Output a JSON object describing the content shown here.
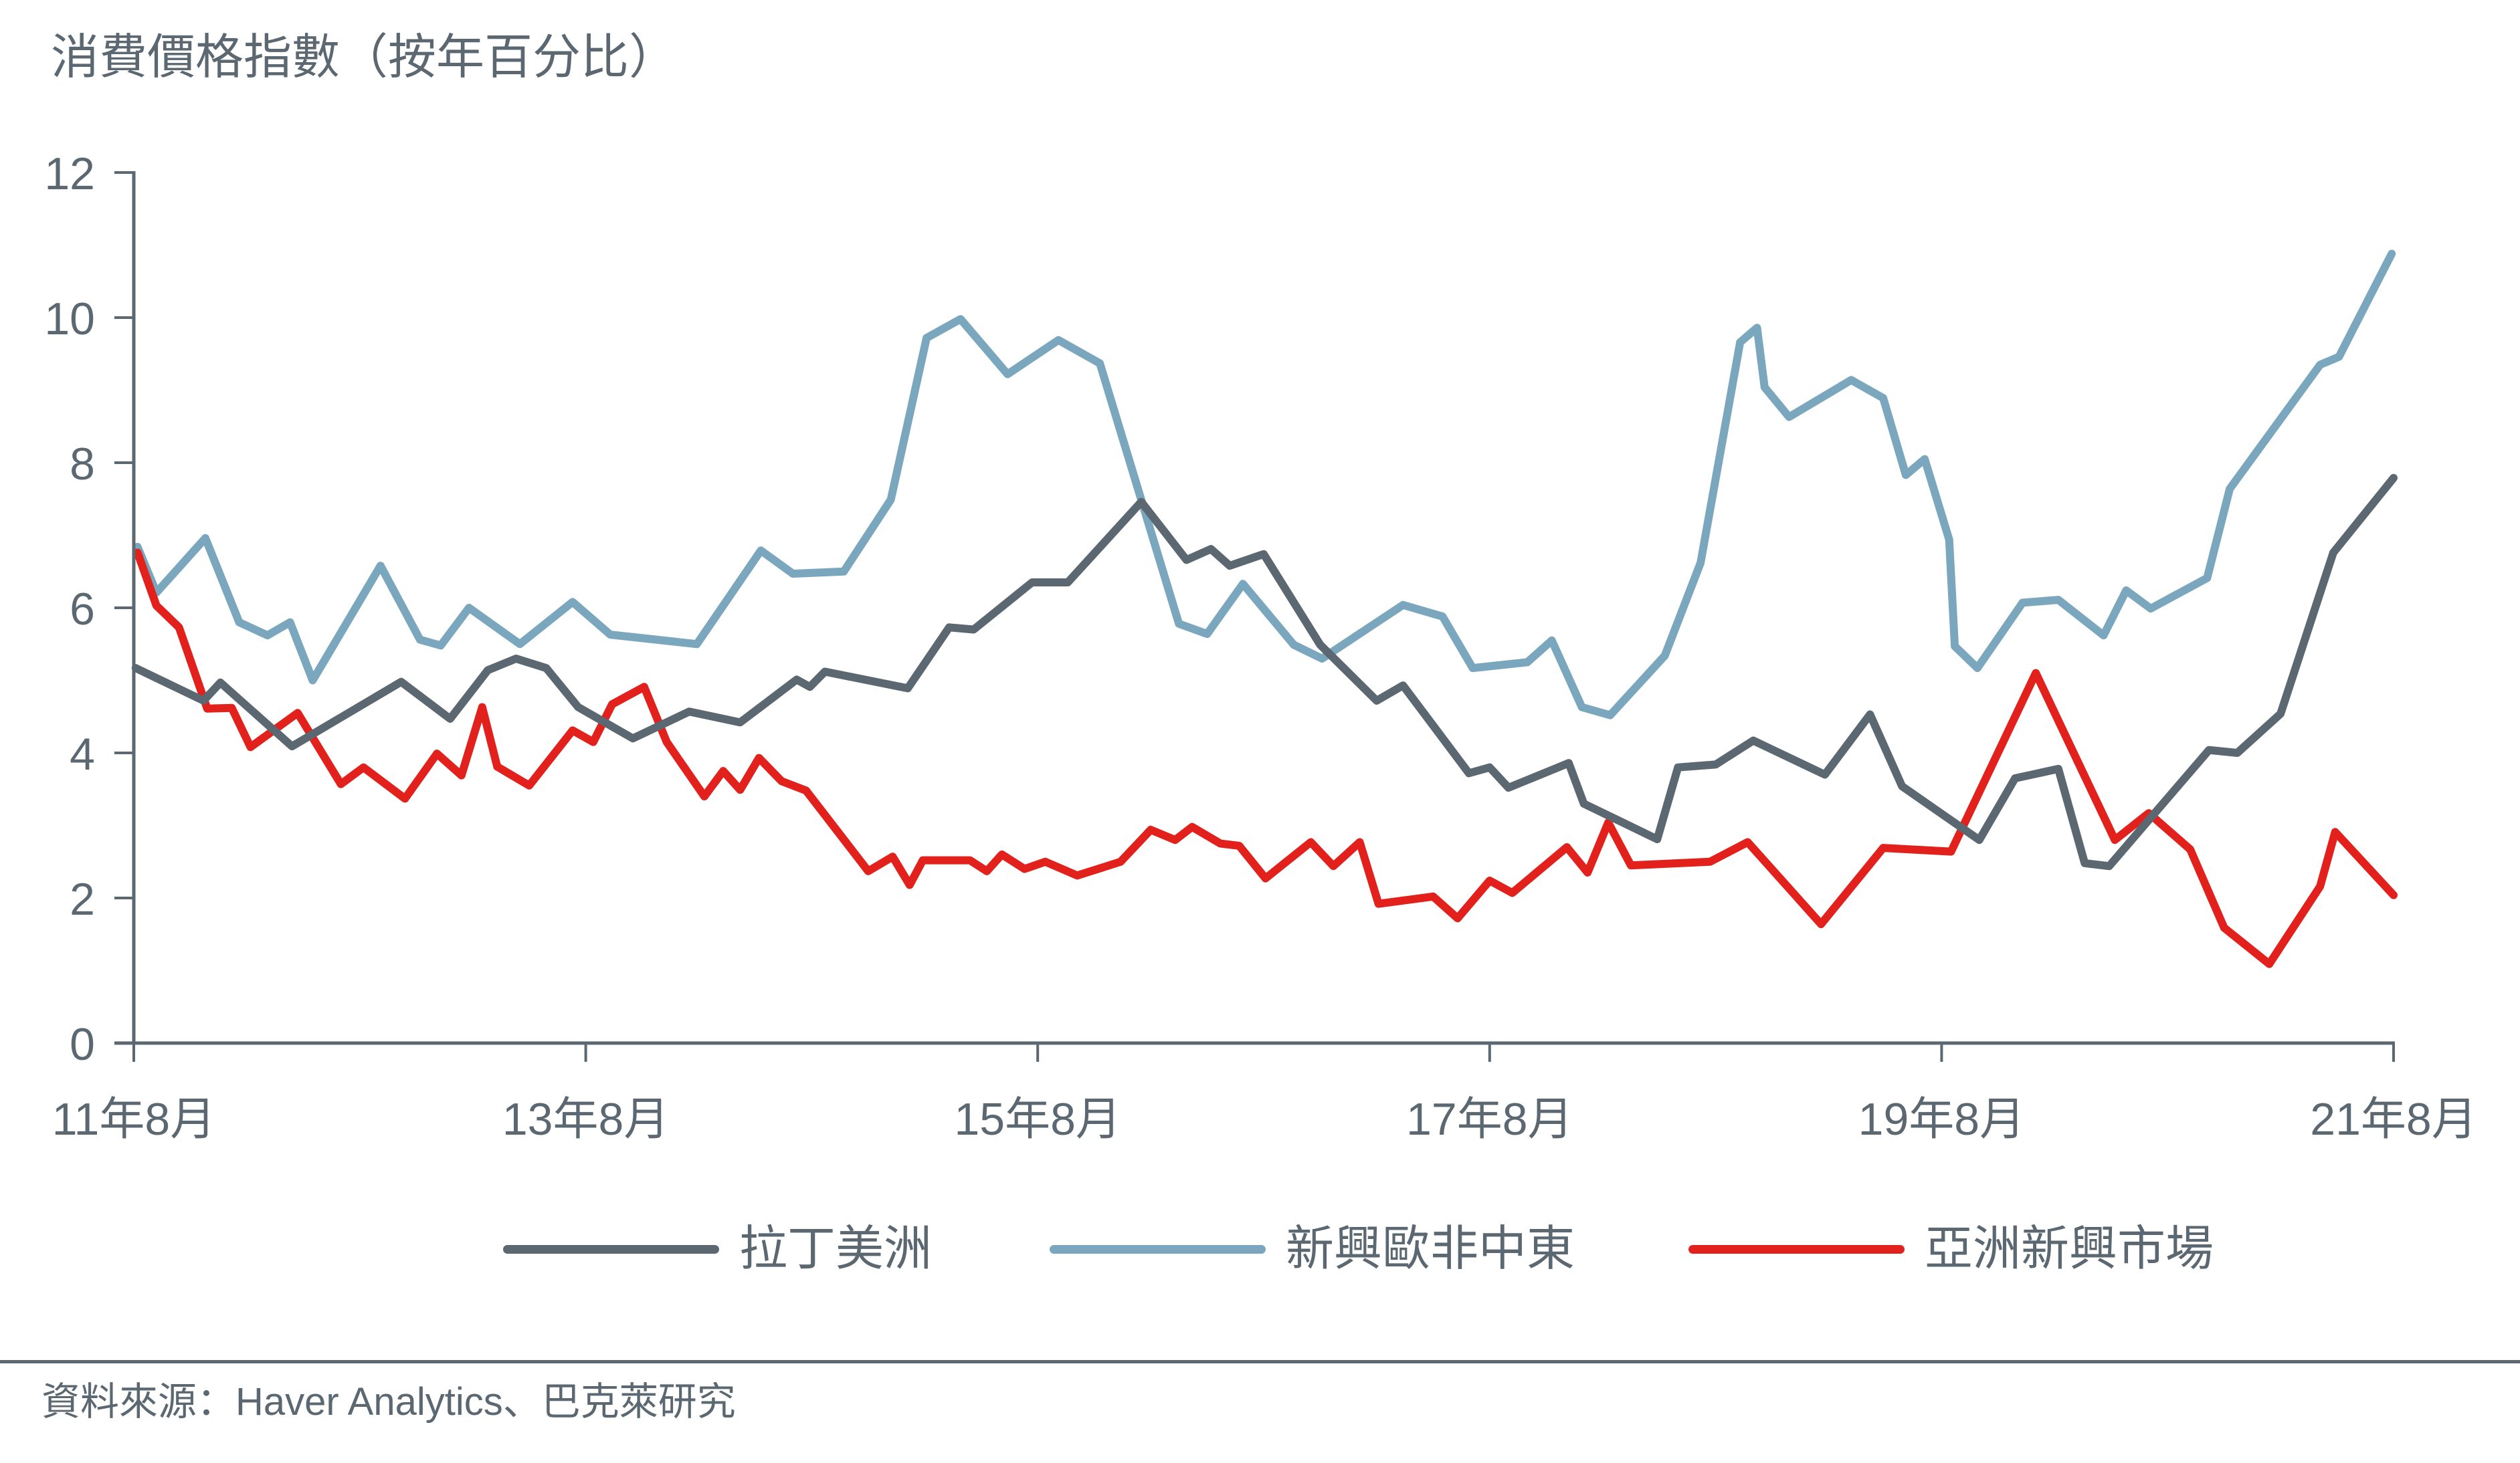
{
  "colors": {
    "text": "#5b6872",
    "axis": "#5b6872",
    "background": "#ffffff"
  },
  "chart_data": {
    "type": "line",
    "title": "消費價格指數（按年百分比）",
    "xlabel": "",
    "ylabel": "",
    "ylim": [
      0,
      12
    ],
    "xlim": [
      0,
      120
    ],
    "y_ticks": [
      0,
      2,
      4,
      6,
      8,
      10,
      12
    ],
    "x_ticks": [
      {
        "pos": 0,
        "label": "11年8月"
      },
      {
        "pos": 24,
        "label": "13年8月"
      },
      {
        "pos": 48,
        "label": "15年8月"
      },
      {
        "pos": 72,
        "label": "17年8月"
      },
      {
        "pos": 96,
        "label": "19年8月"
      },
      {
        "pos": 120,
        "label": "21年8月"
      }
    ],
    "grid": false,
    "legend_position": "bottom",
    "source": "資料來源：Haver Analytics、巴克萊研究",
    "series": [
      {
        "name": "拉丁美洲",
        "color": "#5b6872",
        "points": [
          [
            0.1,
            5.17
          ],
          [
            3.7,
            4.72
          ],
          [
            4.6,
            4.97
          ],
          [
            8.4,
            4.09
          ],
          [
            14.2,
            4.98
          ],
          [
            16.8,
            4.47
          ],
          [
            18.8,
            5.14
          ],
          [
            20.3,
            5.3
          ],
          [
            21.9,
            5.17
          ],
          [
            23.6,
            4.63
          ],
          [
            26.5,
            4.2
          ],
          [
            29.5,
            4.57
          ],
          [
            32.2,
            4.42
          ],
          [
            35.2,
            5.01
          ],
          [
            35.9,
            4.91
          ],
          [
            36.7,
            5.12
          ],
          [
            41.1,
            4.89
          ],
          [
            43.3,
            5.73
          ],
          [
            44.6,
            5.7
          ],
          [
            47.7,
            6.35
          ],
          [
            49.6,
            6.35
          ],
          [
            53.5,
            7.46
          ],
          [
            55.9,
            6.66
          ],
          [
            57.2,
            6.81
          ],
          [
            58.2,
            6.58
          ],
          [
            60.0,
            6.74
          ],
          [
            63.0,
            5.49
          ],
          [
            66.0,
            4.72
          ],
          [
            67.4,
            4.93
          ],
          [
            70.9,
            3.72
          ],
          [
            72.0,
            3.8
          ],
          [
            73.0,
            3.52
          ],
          [
            76.2,
            3.86
          ],
          [
            77.0,
            3.3
          ],
          [
            80.9,
            2.81
          ],
          [
            82.0,
            3.8
          ],
          [
            84.0,
            3.84
          ],
          [
            86.0,
            4.17
          ],
          [
            89.8,
            3.7
          ],
          [
            92.2,
            4.53
          ],
          [
            93.9,
            3.54
          ],
          [
            98.0,
            2.8
          ],
          [
            99.9,
            3.65
          ],
          [
            102.2,
            3.78
          ],
          [
            103.6,
            2.48
          ],
          [
            104.9,
            2.44
          ],
          [
            110.2,
            4.04
          ],
          [
            111.7,
            4.0
          ],
          [
            114.0,
            4.54
          ],
          [
            116.8,
            6.76
          ],
          [
            120.0,
            7.79
          ]
        ]
      },
      {
        "name": "新興歐非中東",
        "color": "#7aa7bd",
        "points": [
          [
            0.2,
            6.84
          ],
          [
            1.2,
            6.21
          ],
          [
            3.8,
            6.96
          ],
          [
            5.6,
            5.8
          ],
          [
            7.1,
            5.62
          ],
          [
            8.3,
            5.8
          ],
          [
            9.5,
            5.0
          ],
          [
            13.1,
            6.58
          ],
          [
            15.2,
            5.56
          ],
          [
            16.3,
            5.48
          ],
          [
            17.8,
            6.0
          ],
          [
            20.5,
            5.5
          ],
          [
            23.3,
            6.08
          ],
          [
            25.3,
            5.63
          ],
          [
            29.9,
            5.5
          ],
          [
            33.3,
            6.79
          ],
          [
            35.0,
            6.47
          ],
          [
            37.7,
            6.5
          ],
          [
            40.2,
            7.49
          ],
          [
            42.1,
            9.72
          ],
          [
            43.9,
            9.98
          ],
          [
            46.4,
            9.22
          ],
          [
            49.1,
            9.69
          ],
          [
            51.3,
            9.37
          ],
          [
            55.5,
            5.78
          ],
          [
            57.0,
            5.64
          ],
          [
            58.9,
            6.33
          ],
          [
            61.6,
            5.49
          ],
          [
            63.1,
            5.3
          ],
          [
            67.4,
            6.04
          ],
          [
            69.5,
            5.88
          ],
          [
            71.1,
            5.17
          ],
          [
            74.0,
            5.25
          ],
          [
            75.3,
            5.55
          ],
          [
            76.9,
            4.63
          ],
          [
            78.4,
            4.52
          ],
          [
            81.3,
            5.34
          ],
          [
            83.2,
            6.62
          ],
          [
            85.3,
            9.66
          ],
          [
            86.2,
            9.86
          ],
          [
            86.6,
            9.04
          ],
          [
            87.9,
            8.63
          ],
          [
            91.2,
            9.14
          ],
          [
            92.9,
            8.89
          ],
          [
            94.1,
            7.83
          ],
          [
            95.1,
            8.05
          ],
          [
            96.4,
            6.94
          ],
          [
            96.7,
            5.47
          ],
          [
            97.9,
            5.17
          ],
          [
            100.3,
            6.07
          ],
          [
            102.2,
            6.11
          ],
          [
            104.6,
            5.62
          ],
          [
            105.8,
            6.24
          ],
          [
            107.1,
            5.99
          ],
          [
            110.1,
            6.41
          ],
          [
            111.3,
            7.64
          ],
          [
            116.1,
            9.35
          ],
          [
            117.1,
            9.46
          ],
          [
            119.9,
            10.88
          ]
        ]
      },
      {
        "name": "亞洲新興市場",
        "color": "#e2201c",
        "points": [
          [
            0.2,
            6.76
          ],
          [
            1.2,
            6.03
          ],
          [
            2.4,
            5.73
          ],
          [
            3.9,
            4.61
          ],
          [
            5.2,
            4.62
          ],
          [
            6.2,
            4.08
          ],
          [
            8.7,
            4.55
          ],
          [
            11.0,
            3.57
          ],
          [
            12.2,
            3.8
          ],
          [
            14.4,
            3.37
          ],
          [
            16.1,
            3.99
          ],
          [
            17.4,
            3.69
          ],
          [
            18.5,
            4.63
          ],
          [
            19.3,
            3.81
          ],
          [
            21.0,
            3.55
          ],
          [
            23.3,
            4.31
          ],
          [
            24.4,
            4.15
          ],
          [
            25.4,
            4.67
          ],
          [
            27.1,
            4.91
          ],
          [
            28.3,
            4.15
          ],
          [
            30.3,
            3.4
          ],
          [
            31.3,
            3.75
          ],
          [
            32.2,
            3.49
          ],
          [
            33.2,
            3.93
          ],
          [
            34.4,
            3.61
          ],
          [
            35.7,
            3.48
          ],
          [
            39.0,
            2.37
          ],
          [
            40.3,
            2.57
          ],
          [
            41.2,
            2.18
          ],
          [
            41.9,
            2.52
          ],
          [
            44.4,
            2.52
          ],
          [
            45.3,
            2.37
          ],
          [
            46.1,
            2.6
          ],
          [
            47.3,
            2.4
          ],
          [
            48.4,
            2.5
          ],
          [
            50.1,
            2.31
          ],
          [
            52.4,
            2.5
          ],
          [
            54.0,
            2.94
          ],
          [
            55.3,
            2.8
          ],
          [
            56.2,
            2.98
          ],
          [
            57.7,
            2.75
          ],
          [
            58.7,
            2.72
          ],
          [
            60.1,
            2.27
          ],
          [
            62.5,
            2.77
          ],
          [
            63.7,
            2.44
          ],
          [
            65.1,
            2.77
          ],
          [
            66.1,
            1.92
          ],
          [
            69.0,
            2.02
          ],
          [
            70.3,
            1.72
          ],
          [
            72.0,
            2.24
          ],
          [
            73.2,
            2.07
          ],
          [
            76.1,
            2.7
          ],
          [
            77.2,
            2.35
          ],
          [
            78.3,
            3.04
          ],
          [
            79.5,
            2.45
          ],
          [
            83.7,
            2.5
          ],
          [
            85.7,
            2.77
          ],
          [
            89.6,
            1.64
          ],
          [
            92.9,
            2.69
          ],
          [
            96.5,
            2.64
          ],
          [
            101.0,
            5.1
          ],
          [
            105.2,
            2.8
          ],
          [
            107.0,
            3.17
          ],
          [
            109.2,
            2.67
          ],
          [
            111.0,
            1.59
          ],
          [
            113.4,
            1.09
          ],
          [
            116.1,
            2.16
          ],
          [
            116.9,
            2.91
          ],
          [
            120.0,
            2.04
          ]
        ]
      }
    ]
  }
}
